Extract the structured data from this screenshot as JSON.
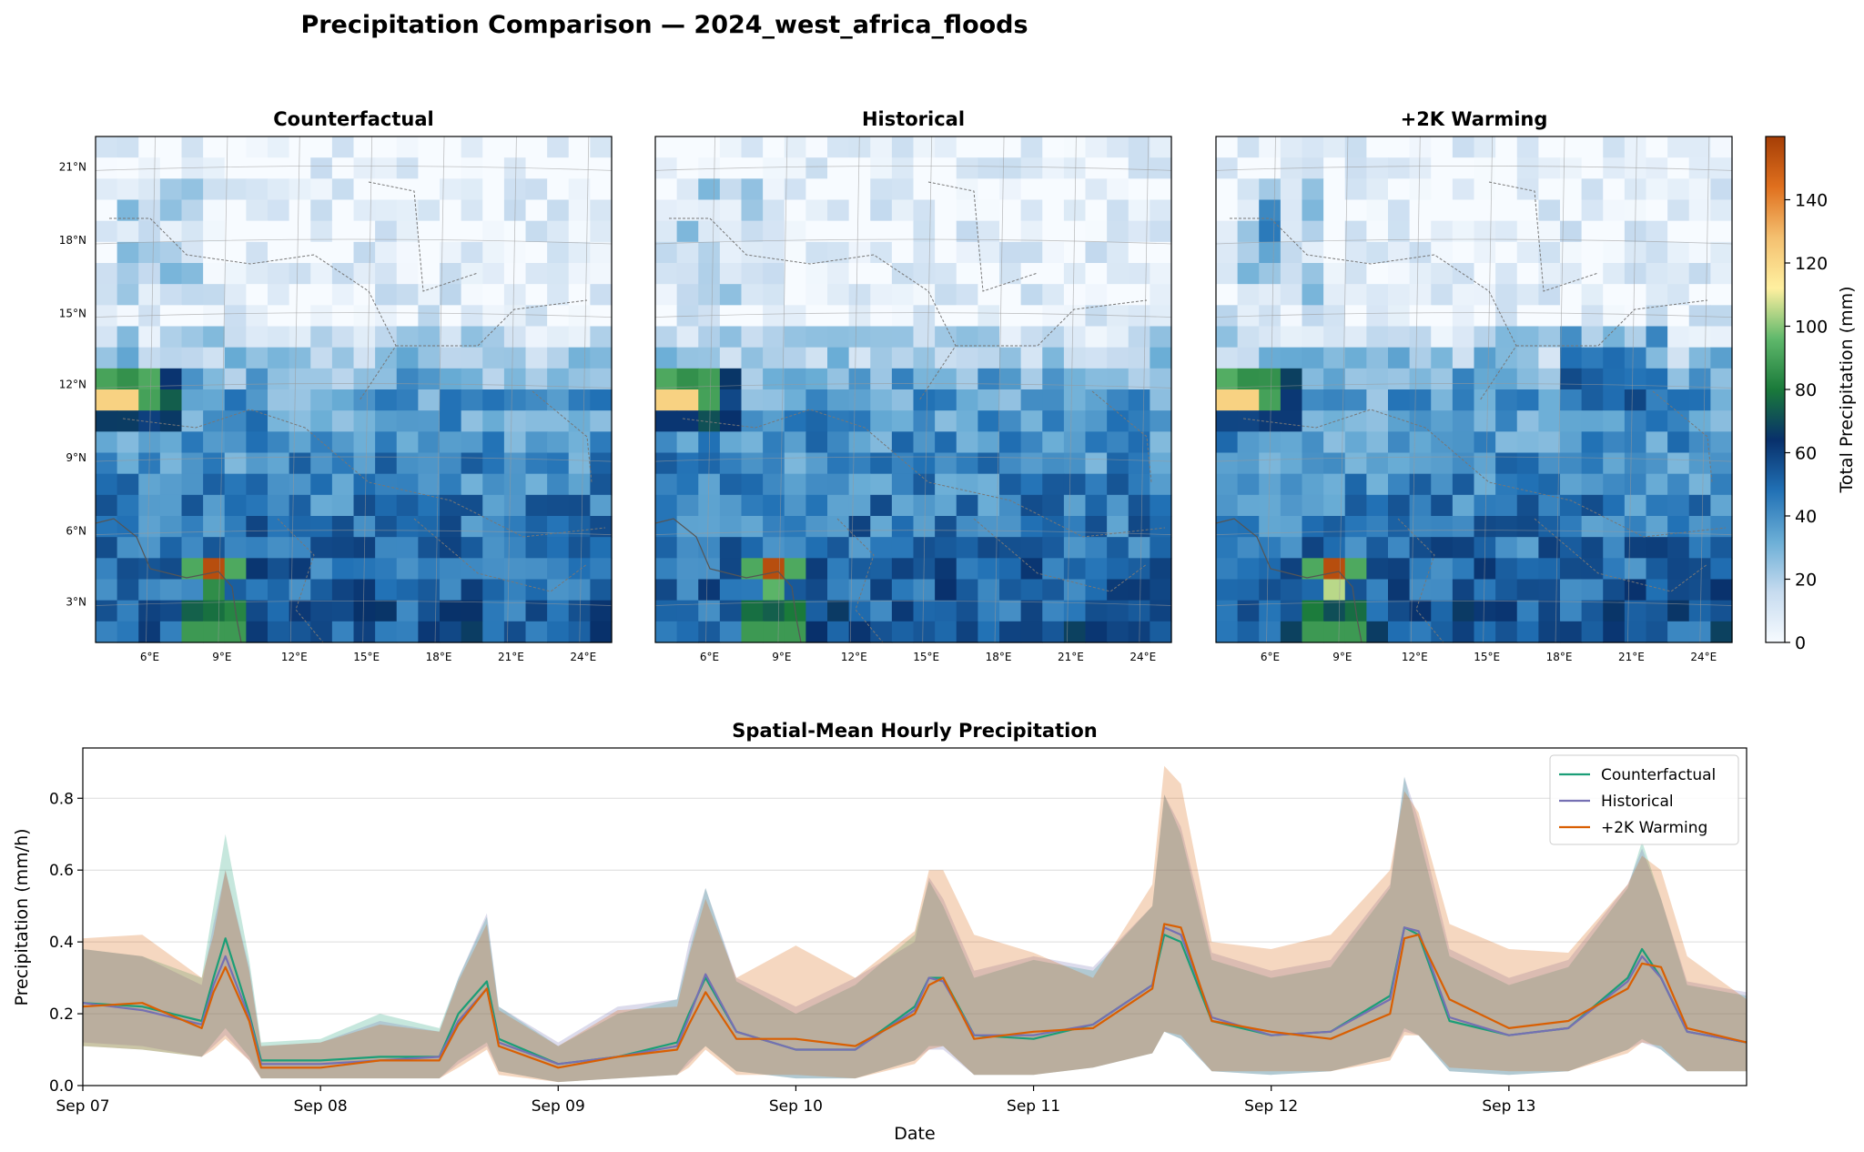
{
  "title": "Precipitation Comparison — 2024_west_africa_floods",
  "maps": {
    "panels": [
      {
        "name": "counterfactual",
        "title": "Counterfactual"
      },
      {
        "name": "historical",
        "title": "Historical"
      },
      {
        "name": "plus2k",
        "title": "+2K Warming"
      }
    ],
    "lon_ticks": [
      "6°E",
      "9°E",
      "12°E",
      "15°E",
      "18°E",
      "21°E",
      "24°E"
    ],
    "lat_ticks": [
      "21°N",
      "18°N",
      "15°N",
      "12°N",
      "9°N",
      "6°N",
      "3°N"
    ],
    "colorbar": {
      "label": "Total Precipitation (mm)",
      "ticks": [
        "0",
        "20",
        "40",
        "60",
        "80",
        "100",
        "120",
        "140"
      ],
      "range": [
        0,
        160
      ],
      "colors": [
        "#f7fbff",
        "#c6dbef",
        "#6baed6",
        "#2171b5",
        "#08306b",
        "#1a7a3a",
        "#5fb86b",
        "#fff0a0",
        "#f4c070",
        "#e0701e",
        "#a53e06"
      ]
    }
  },
  "chart_data": {
    "type": "line",
    "title": "Spatial-Mean Hourly Precipitation",
    "xlabel": "Date",
    "ylabel": "Precipitation (mm/h)",
    "x_ticks": [
      "Sep 07",
      "Sep 08",
      "Sep 09",
      "Sep 10",
      "Sep 11",
      "Sep 12",
      "Sep 13"
    ],
    "x_range_days": [
      0,
      7
    ],
    "ylim": [
      0,
      0.94
    ],
    "y_ticks": [
      "0.0",
      "0.2",
      "0.4",
      "0.6",
      "0.8"
    ],
    "grid": "horizontal",
    "legend": "top-right",
    "x_days": [
      0,
      0.25,
      0.5,
      0.55,
      0.6,
      0.7,
      0.75,
      1.0,
      1.25,
      1.5,
      1.58,
      1.7,
      1.75,
      2.0,
      2.25,
      2.5,
      2.55,
      2.62,
      2.75,
      3.0,
      3.25,
      3.5,
      3.56,
      3.62,
      3.75,
      4.0,
      4.25,
      4.5,
      4.55,
      4.62,
      4.75,
      5.0,
      5.25,
      5.5,
      5.56,
      5.62,
      5.75,
      6.0,
      6.25,
      6.5,
      6.56,
      6.64,
      6.75,
      7.0
    ],
    "series": [
      {
        "name": "Counterfactual",
        "color": "#1b9e77",
        "values": [
          0.23,
          0.22,
          0.18,
          0.3,
          0.41,
          0.2,
          0.07,
          0.07,
          0.08,
          0.08,
          0.2,
          0.29,
          0.13,
          0.06,
          0.08,
          0.12,
          0.2,
          0.3,
          0.15,
          0.1,
          0.1,
          0.22,
          0.3,
          0.3,
          0.14,
          0.13,
          0.17,
          0.28,
          0.42,
          0.4,
          0.18,
          0.14,
          0.15,
          0.25,
          0.44,
          0.42,
          0.18,
          0.14,
          0.16,
          0.3,
          0.38,
          0.3,
          0.15,
          0.12
        ],
        "band_low": [
          0.11,
          0.1,
          0.08,
          0.12,
          0.16,
          0.08,
          0.02,
          0.02,
          0.02,
          0.02,
          0.07,
          0.12,
          0.04,
          0.01,
          0.02,
          0.03,
          0.07,
          0.11,
          0.04,
          0.02,
          0.02,
          0.07,
          0.11,
          0.11,
          0.03,
          0.03,
          0.05,
          0.09,
          0.15,
          0.13,
          0.04,
          0.03,
          0.04,
          0.08,
          0.16,
          0.14,
          0.04,
          0.03,
          0.04,
          0.1,
          0.13,
          0.1,
          0.04,
          0.04
        ],
        "band_high": [
          0.38,
          0.36,
          0.3,
          0.5,
          0.7,
          0.35,
          0.12,
          0.13,
          0.2,
          0.16,
          0.3,
          0.47,
          0.22,
          0.11,
          0.2,
          0.24,
          0.37,
          0.55,
          0.29,
          0.2,
          0.28,
          0.42,
          0.57,
          0.5,
          0.3,
          0.35,
          0.32,
          0.5,
          0.81,
          0.7,
          0.35,
          0.3,
          0.33,
          0.55,
          0.86,
          0.7,
          0.36,
          0.28,
          0.33,
          0.55,
          0.68,
          0.52,
          0.28,
          0.25
        ]
      },
      {
        "name": "Historical",
        "color": "#7570b3",
        "values": [
          0.23,
          0.21,
          0.17,
          0.28,
          0.36,
          0.19,
          0.06,
          0.06,
          0.07,
          0.08,
          0.18,
          0.27,
          0.12,
          0.06,
          0.08,
          0.11,
          0.19,
          0.31,
          0.15,
          0.1,
          0.1,
          0.21,
          0.3,
          0.29,
          0.14,
          0.14,
          0.17,
          0.28,
          0.44,
          0.42,
          0.19,
          0.14,
          0.15,
          0.24,
          0.44,
          0.43,
          0.19,
          0.14,
          0.16,
          0.29,
          0.36,
          0.3,
          0.15,
          0.12
        ],
        "band_low": [
          0.12,
          0.11,
          0.08,
          0.11,
          0.14,
          0.07,
          0.02,
          0.02,
          0.02,
          0.02,
          0.06,
          0.11,
          0.04,
          0.01,
          0.02,
          0.03,
          0.06,
          0.11,
          0.04,
          0.02,
          0.02,
          0.07,
          0.1,
          0.1,
          0.03,
          0.03,
          0.05,
          0.09,
          0.15,
          0.13,
          0.04,
          0.03,
          0.04,
          0.08,
          0.15,
          0.14,
          0.04,
          0.03,
          0.04,
          0.1,
          0.12,
          0.1,
          0.04,
          0.04
        ],
        "band_high": [
          0.38,
          0.36,
          0.28,
          0.45,
          0.6,
          0.33,
          0.11,
          0.12,
          0.18,
          0.15,
          0.3,
          0.48,
          0.22,
          0.12,
          0.22,
          0.24,
          0.4,
          0.55,
          0.3,
          0.22,
          0.3,
          0.4,
          0.58,
          0.52,
          0.32,
          0.36,
          0.33,
          0.5,
          0.81,
          0.72,
          0.37,
          0.32,
          0.35,
          0.56,
          0.86,
          0.74,
          0.38,
          0.3,
          0.35,
          0.56,
          0.66,
          0.52,
          0.29,
          0.26
        ]
      },
      {
        "name": "+2K Warming",
        "color": "#d95f02",
        "values": [
          0.22,
          0.23,
          0.16,
          0.26,
          0.33,
          0.18,
          0.05,
          0.05,
          0.07,
          0.07,
          0.17,
          0.27,
          0.11,
          0.05,
          0.08,
          0.1,
          0.17,
          0.26,
          0.13,
          0.13,
          0.11,
          0.2,
          0.28,
          0.3,
          0.13,
          0.15,
          0.16,
          0.27,
          0.45,
          0.44,
          0.18,
          0.15,
          0.13,
          0.2,
          0.41,
          0.42,
          0.24,
          0.16,
          0.18,
          0.27,
          0.34,
          0.33,
          0.16,
          0.12
        ],
        "band_low": [
          0.11,
          0.1,
          0.08,
          0.1,
          0.13,
          0.07,
          0.02,
          0.02,
          0.02,
          0.02,
          0.05,
          0.1,
          0.03,
          0.01,
          0.02,
          0.03,
          0.05,
          0.1,
          0.03,
          0.03,
          0.02,
          0.06,
          0.1,
          0.11,
          0.03,
          0.03,
          0.05,
          0.09,
          0.15,
          0.14,
          0.04,
          0.04,
          0.04,
          0.07,
          0.14,
          0.14,
          0.05,
          0.04,
          0.04,
          0.09,
          0.12,
          0.11,
          0.04,
          0.04
        ],
        "band_high": [
          0.41,
          0.42,
          0.3,
          0.42,
          0.6,
          0.32,
          0.11,
          0.12,
          0.17,
          0.15,
          0.29,
          0.45,
          0.21,
          0.11,
          0.21,
          0.22,
          0.36,
          0.52,
          0.3,
          0.39,
          0.3,
          0.43,
          0.6,
          0.6,
          0.42,
          0.37,
          0.3,
          0.56,
          0.89,
          0.84,
          0.4,
          0.38,
          0.42,
          0.6,
          0.82,
          0.76,
          0.45,
          0.38,
          0.37,
          0.56,
          0.64,
          0.6,
          0.36,
          0.24
        ]
      }
    ]
  }
}
